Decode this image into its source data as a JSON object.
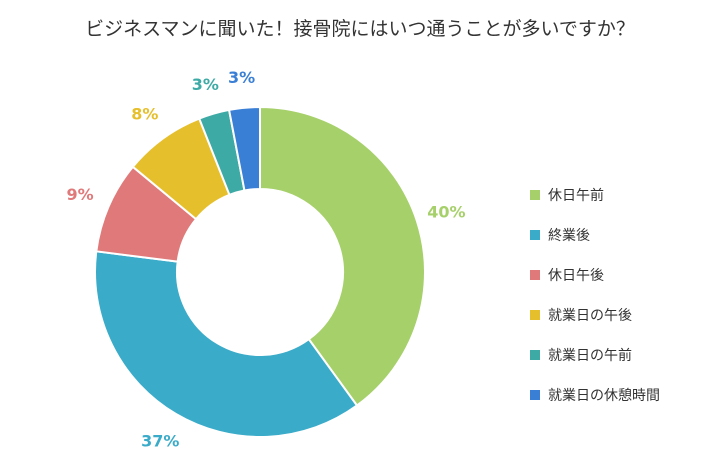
{
  "chart_data": {
    "type": "pie",
    "donut": true,
    "title": "ビジネスマンに聞いた！接骨院にはいつ通うことが多いですか？",
    "categories": [
      "休日午前",
      "終業後",
      "休日午後",
      "就業日の午後",
      "就業日の午前",
      "就業日の休憩時間"
    ],
    "values": [
      40,
      37,
      9,
      8,
      3,
      3
    ],
    "data_labels": [
      "40%",
      "37%",
      "9%",
      "8%",
      "3%",
      "3%"
    ],
    "colors": [
      "#a6d06a",
      "#3aabc9",
      "#e07a7a",
      "#e6bf2c",
      "#3eaaa6",
      "#3a7fd6"
    ],
    "legend": "right"
  }
}
